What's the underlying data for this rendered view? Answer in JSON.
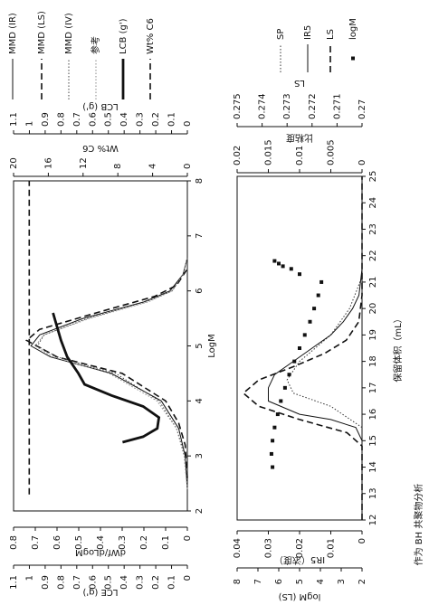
{
  "chart_data": [
    {
      "type": "line",
      "x_label": "LogM",
      "xlim": [
        2,
        8
      ],
      "xticks": [
        2,
        3,
        4,
        5,
        6,
        7,
        8
      ],
      "axes": [
        {
          "label": "dWf/dLogM",
          "side": "left",
          "lim": [
            0,
            0.8
          ],
          "ticks": [
            0,
            0.1,
            0.2,
            0.3,
            0.4,
            0.5,
            0.6,
            0.7,
            0.8
          ]
        },
        {
          "label": "LCE (g')",
          "side": "left",
          "lim": [
            0,
            1.1
          ],
          "ticks": [
            0,
            0.1,
            0.2,
            0.3,
            0.4,
            0.5,
            0.6,
            0.7,
            0.8,
            0.9,
            1,
            1.1
          ]
        },
        {
          "label": "Wt% C6",
          "side": "right",
          "lim": [
            0,
            20
          ],
          "ticks": [
            0,
            4,
            8,
            12,
            16,
            20
          ]
        },
        {
          "label": "LCB (g')",
          "side": "right",
          "lim": [
            0,
            1.1
          ],
          "ticks": [
            0,
            0.1,
            0.2,
            0.3,
            0.4,
            0.5,
            0.6,
            0.7,
            0.8,
            0.9,
            1,
            1.1
          ]
        }
      ],
      "series": [
        {
          "name": "MMD (IR)",
          "style": "solid",
          "color": "#111111",
          "axis": 0,
          "x": [
            2.4,
            3,
            3.5,
            4,
            4.5,
            4.8,
            5,
            5.2,
            5.5,
            5.8,
            6,
            6.3,
            6.6
          ],
          "values": [
            0,
            0.01,
            0.04,
            0.12,
            0.35,
            0.63,
            0.72,
            0.68,
            0.48,
            0.2,
            0.08,
            0.02,
            0
          ]
        },
        {
          "name": "MMD (LS)",
          "style": "dashed",
          "color": "#111111",
          "axis": 0,
          "x": [
            2.6,
            3.2,
            3.6,
            4,
            4.5,
            4.8,
            5.1,
            5.3,
            5.6,
            5.9,
            6.1,
            6.4
          ],
          "values": [
            0,
            0.01,
            0.04,
            0.1,
            0.3,
            0.6,
            0.74,
            0.68,
            0.42,
            0.15,
            0.05,
            0
          ]
        },
        {
          "name": "MMD (IV)",
          "style": "dotted",
          "color": "#444444",
          "axis": 0,
          "x": [
            2.4,
            3,
            3.5,
            4,
            4.5,
            4.8,
            5,
            5.2,
            5.5,
            5.8,
            6,
            6.3,
            6.6
          ],
          "values": [
            0,
            0.01,
            0.05,
            0.13,
            0.33,
            0.6,
            0.69,
            0.66,
            0.46,
            0.19,
            0.07,
            0.02,
            0
          ]
        },
        {
          "name": "参考",
          "style": "dotted",
          "color": "#888888",
          "axis": 0,
          "x": [
            2.4,
            3,
            3.5,
            4,
            4.5,
            4.8,
            5,
            5.2,
            5.5,
            5.8,
            6,
            6.3,
            6.6
          ],
          "values": [
            0,
            0.015,
            0.05,
            0.14,
            0.36,
            0.62,
            0.7,
            0.66,
            0.45,
            0.18,
            0.07,
            0.02,
            0
          ]
        },
        {
          "name": "LCB (g')",
          "style": "thick",
          "color": "#111111",
          "axis": 3,
          "x": [
            3.25,
            3.35,
            3.5,
            3.7,
            3.9,
            4.1,
            4.3,
            4.5,
            4.8,
            5.1,
            5.4,
            5.6
          ],
          "values": [
            0.41,
            0.28,
            0.19,
            0.18,
            0.28,
            0.48,
            0.65,
            0.69,
            0.76,
            0.8,
            0.83,
            0.85
          ]
        },
        {
          "name": "Wt% C6",
          "style": "dashed",
          "color": "#111111",
          "axis": 2,
          "x": [
            2.3,
            8
          ],
          "values": [
            18.2,
            18.2
          ]
        }
      ]
    },
    {
      "type": "line",
      "x_label": "保留体积（mL）",
      "caption": "作为 BH 共聚物分析",
      "xlim": [
        12,
        25
      ],
      "xticks": [
        12,
        13,
        14,
        15,
        16,
        17,
        18,
        19,
        20,
        21,
        22,
        23,
        24,
        25
      ],
      "axes": [
        {
          "label": "IR5（浓度）",
          "side": "left",
          "lim": [
            0,
            0.04
          ],
          "ticks": [
            0,
            0.01,
            0.02,
            0.03,
            0.04
          ]
        },
        {
          "label": "logM (LS)",
          "side": "left",
          "lim": [
            2,
            8
          ],
          "ticks": [
            2,
            3,
            4,
            5,
            6,
            7,
            8
          ]
        },
        {
          "label": "比粘度",
          "side": "right",
          "lim": [
            0,
            0.02
          ],
          "ticks": [
            0,
            0.005,
            0.01,
            0.015,
            0.02
          ]
        },
        {
          "label": "LS",
          "side": "right",
          "lim": [
            0.27,
            0.275
          ],
          "ticks": [
            0.27,
            0.271,
            0.272,
            0.273,
            0.274,
            0.275
          ]
        }
      ],
      "series": [
        {
          "name": "SP",
          "style": "dotted",
          "color": "#333333",
          "axis": 2,
          "x": [
            15.5,
            16.3,
            16.8,
            17.3,
            18,
            19,
            20,
            21.2
          ],
          "values": [
            0,
            0.005,
            0.011,
            0.012,
            0.01,
            0.005,
            0.002,
            0
          ]
        },
        {
          "name": "IR5",
          "style": "solid",
          "color": "#111111",
          "axis": 0,
          "x": [
            12,
            15,
            15.5,
            15.8,
            16,
            16.5,
            17,
            17.5,
            18,
            18.5,
            19,
            19.5,
            20,
            20.5,
            21.5,
            25
          ],
          "values": [
            0,
            0,
            0.002,
            0.01,
            0.02,
            0.03,
            0.03,
            0.028,
            0.022,
            0.016,
            0.01,
            0.006,
            0.003,
            0.001,
            0,
            0
          ]
        },
        {
          "name": "LS",
          "style": "dashed",
          "color": "#111111",
          "axis": 3,
          "x": [
            12,
            14.8,
            15.3,
            15.8,
            16.3,
            16.8,
            17.3,
            17.8,
            18.3,
            18.8,
            19.5,
            20.5,
            25
          ],
          "values": [
            0.27,
            0.27,
            0.2706,
            0.2725,
            0.27413,
            0.27475,
            0.27413,
            0.27275,
            0.2715,
            0.27063,
            0.27013,
            0.27,
            0.27
          ]
        },
        {
          "name": "logM",
          "style": "dots",
          "color": "#111111",
          "axis": 1,
          "x": [
            14,
            14.5,
            15,
            15.5,
            16,
            16.5,
            17,
            17.5,
            18,
            18.5,
            19,
            19.5,
            20,
            20.5,
            21,
            21.3,
            21.5,
            21.6,
            21.7,
            21.8
          ],
          "values": [
            6.3,
            6.35,
            6.3,
            6.2,
            6.05,
            5.9,
            5.7,
            5.5,
            5.25,
            5,
            4.75,
            4.5,
            4.3,
            4.1,
            3.95,
            5,
            5.4,
            5.8,
            6,
            6.2
          ]
        }
      ]
    }
  ]
}
